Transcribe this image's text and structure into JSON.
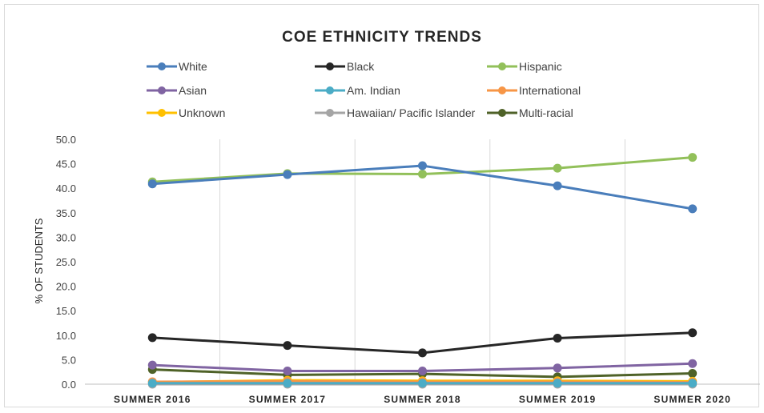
{
  "chart_data": {
    "type": "line",
    "title": "COE ETHNICITY TRENDS",
    "xlabel": "",
    "ylabel": "% OF STUDENTS",
    "categories": [
      "SUMMER 2016",
      "SUMMER 2017",
      "SUMMER 2018",
      "SUMMER 2019",
      "SUMMER 2020"
    ],
    "ylim": [
      0,
      50
    ],
    "yticks": [
      "0.0",
      "5.0",
      "10.0",
      "15.0",
      "20.0",
      "25.0",
      "30.0",
      "35.0",
      "40.0",
      "45.0",
      "50.0"
    ],
    "grid": "vertical",
    "legend_position": "top",
    "series": [
      {
        "name": "White",
        "color": "#4a7ebb",
        "values": [
          40.9,
          42.8,
          44.6,
          40.5,
          35.8
        ]
      },
      {
        "name": "Black",
        "color": "#262626",
        "values": [
          9.5,
          7.9,
          6.4,
          9.4,
          10.5
        ]
      },
      {
        "name": "Hispanic",
        "color": "#92c05a",
        "values": [
          41.3,
          43.0,
          42.9,
          44.1,
          46.3
        ]
      },
      {
        "name": "Asian",
        "color": "#8064a2",
        "values": [
          3.9,
          2.7,
          2.7,
          3.3,
          4.2
        ]
      },
      {
        "name": "Am. Indian",
        "color": "#4bacc6",
        "values": [
          0.2,
          0.2,
          0.2,
          0.2,
          0.2
        ]
      },
      {
        "name": "International",
        "color": "#f79646",
        "values": [
          0.5,
          0.6,
          0.5,
          0.5,
          0.4
        ]
      },
      {
        "name": "Unknown",
        "color": "#ffc000",
        "values": [
          0.4,
          0.8,
          0.7,
          0.7,
          0.6
        ]
      },
      {
        "name": "Hawaiian/ Pacific Islander",
        "color": "#a5a5a5",
        "values": [
          0.0,
          0.0,
          0.0,
          0.0,
          0.0
        ]
      },
      {
        "name": "Multi-racial",
        "color": "#4f6228",
        "values": [
          3.0,
          1.9,
          2.1,
          1.5,
          2.2
        ]
      }
    ]
  }
}
